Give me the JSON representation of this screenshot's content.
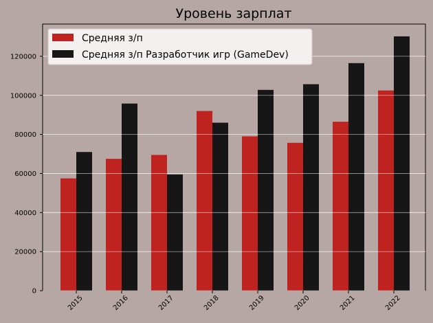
{
  "chart_data": {
    "type": "bar",
    "title": "Уровень зарплат",
    "xlabel": "",
    "ylabel": "",
    "categories": [
      "2015",
      "2016",
      "2017",
      "2018",
      "2019",
      "2020",
      "2021",
      "2022"
    ],
    "series": [
      {
        "name": "Средняя з/п",
        "color": "#bf2320",
        "values": [
          57500,
          67500,
          69500,
          92000,
          79000,
          75700,
          86500,
          102500
        ]
      },
      {
        "name": "Средняя з/п Разработчик игр (GameDev)",
        "color": "#161616",
        "values": [
          71000,
          95800,
          59500,
          86000,
          102800,
          105700,
          116500,
          130200
        ]
      }
    ],
    "ylim": [
      0,
      136500
    ],
    "yticks": [
      0,
      20000,
      40000,
      60000,
      80000,
      100000,
      120000
    ],
    "ytick_labels": [
      "0",
      "20000",
      "40000",
      "60000",
      "80000",
      "100000",
      "120000"
    ],
    "grid": "horizontal",
    "legend": "upper-left",
    "xtick_rotation": 45
  }
}
